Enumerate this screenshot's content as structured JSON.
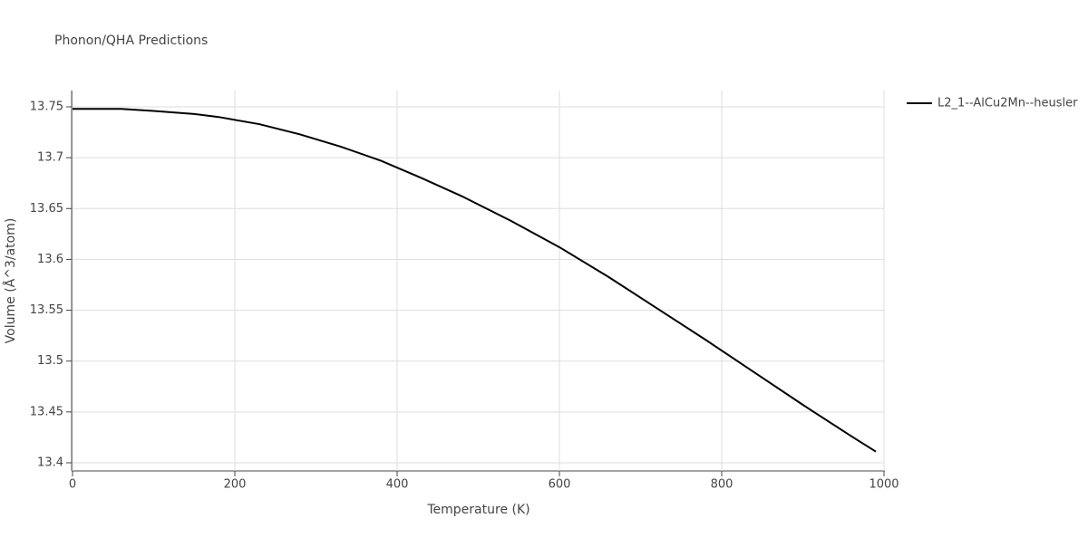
{
  "chart_data": {
    "type": "line",
    "title": "Phonon/QHA Predictions",
    "x_label": "Temperature (K)",
    "y_label": "Volume (Å^3/atom)",
    "x": [
      0,
      60,
      100,
      150,
      180,
      230,
      280,
      330,
      380,
      430,
      480,
      540,
      600,
      660,
      720,
      780,
      840,
      900,
      960,
      990
    ],
    "series": [
      {
        "name": "L2_1--AlCu2Mn--heusler",
        "color": "#000000",
        "values": [
          13.748,
          13.748,
          13.746,
          13.743,
          13.74,
          13.733,
          13.723,
          13.711,
          13.697,
          13.68,
          13.662,
          13.638,
          13.612,
          13.583,
          13.552,
          13.521,
          13.489,
          13.457,
          13.426,
          13.411
        ]
      }
    ],
    "xlim": [
      0,
      1000
    ],
    "xticks": [
      0,
      200,
      400,
      600,
      800,
      1000
    ],
    "ylim": [
      13.392,
      13.766
    ],
    "yticks": [
      13.4,
      13.45,
      13.5,
      13.55,
      13.6,
      13.65,
      13.7,
      13.75
    ],
    "grid": true,
    "legend": "top-right"
  }
}
